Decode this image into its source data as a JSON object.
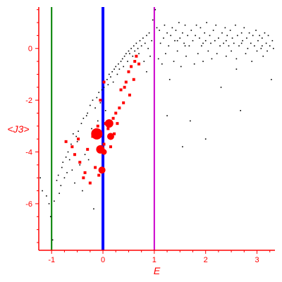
{
  "chart_data": {
    "type": "scatter",
    "title": "",
    "xlabel": "E",
    "ylabel": "<J3>",
    "xlim": [
      -1.25,
      3.35
    ],
    "ylim": [
      -7.8,
      1.6
    ],
    "x_ticks": [
      -1,
      0,
      1,
      2,
      3
    ],
    "y_ticks": [
      -6,
      -4,
      -2,
      0
    ],
    "grid": false,
    "colors": {
      "axes": "#ff0000",
      "background_points": "#000000",
      "highlight_points": "#ff0000",
      "line_green": "#008000",
      "line_blue": "#0000ff",
      "line_magenta": "#cc00cc"
    },
    "vertical_lines": [
      {
        "x": -1.0,
        "color": "#008000",
        "width": 2
      },
      {
        "x": 0.0,
        "color": "#0000ff",
        "width": 4
      },
      {
        "x": 1.0,
        "color": "#cc00cc",
        "width": 2
      }
    ],
    "series": [
      {
        "color": "#000000",
        "marker": "dot",
        "points": [
          [
            -1.22,
            -5.0
          ],
          [
            -1.18,
            -5.5
          ],
          [
            -1.1,
            -5.7
          ],
          [
            -1.05,
            -6.0
          ],
          [
            -1.02,
            -6.5
          ],
          [
            -0.98,
            -7.4
          ],
          [
            -0.95,
            -5.9
          ],
          [
            -0.9,
            -5.1
          ],
          [
            -0.87,
            -4.9
          ],
          [
            -0.85,
            -5.6
          ],
          [
            -0.82,
            -5.3
          ],
          [
            -0.8,
            -4.6
          ],
          [
            -0.78,
            -4.4
          ],
          [
            -0.75,
            -5.0
          ],
          [
            -0.72,
            -4.2
          ],
          [
            -0.7,
            -4.8
          ],
          [
            -0.68,
            -4.0
          ],
          [
            -0.65,
            -4.3
          ],
          [
            -0.62,
            -3.7
          ],
          [
            -0.6,
            -4.7
          ],
          [
            -0.58,
            -3.3
          ],
          [
            -0.55,
            -5.2
          ],
          [
            -0.52,
            -3.4
          ],
          [
            -0.5,
            -3.6
          ],
          [
            -0.48,
            -3.2
          ],
          [
            -0.45,
            -4.5
          ],
          [
            -0.42,
            -2.9
          ],
          [
            -0.4,
            -5.5
          ],
          [
            -0.38,
            -2.7
          ],
          [
            -0.35,
            -4.1
          ],
          [
            -0.32,
            -2.6
          ],
          [
            -0.3,
            -2.5
          ],
          [
            -0.28,
            -4.3
          ],
          [
            -0.25,
            -2.2
          ],
          [
            -0.22,
            -3.1
          ],
          [
            -0.2,
            -2.0
          ],
          [
            -0.18,
            -6.2
          ],
          [
            -0.15,
            -2.3
          ],
          [
            -0.12,
            -1.9
          ],
          [
            -0.1,
            -2.8
          ],
          [
            -0.08,
            -1.7
          ],
          [
            -0.05,
            -2.1
          ],
          [
            -0.02,
            -1.6
          ],
          [
            0.02,
            -1.5
          ],
          [
            0.05,
            -2.4
          ],
          [
            0.08,
            -1.2
          ],
          [
            0.1,
            -1.4
          ],
          [
            0.12,
            -1.0
          ],
          [
            0.15,
            -1.1
          ],
          [
            0.18,
            -0.9
          ],
          [
            0.2,
            -1.3
          ],
          [
            0.22,
            -0.8
          ],
          [
            0.25,
            -0.7
          ],
          [
            0.28,
            -1.0
          ],
          [
            0.3,
            -0.6
          ],
          [
            0.32,
            -0.8
          ],
          [
            0.35,
            -0.5
          ],
          [
            0.38,
            -0.4
          ],
          [
            0.4,
            -0.7
          ],
          [
            0.42,
            -0.3
          ],
          [
            0.45,
            -0.2
          ],
          [
            0.48,
            -0.5
          ],
          [
            0.5,
            -0.1
          ],
          [
            0.52,
            -0.2
          ],
          [
            0.55,
            0.0
          ],
          [
            0.58,
            -0.3
          ],
          [
            0.6,
            0.1
          ],
          [
            0.62,
            -0.1
          ],
          [
            0.65,
            0.2
          ],
          [
            0.68,
            0.0
          ],
          [
            0.7,
            -0.2
          ],
          [
            0.72,
            0.3
          ],
          [
            0.75,
            0.1
          ],
          [
            0.78,
            0.4
          ],
          [
            0.8,
            -0.5
          ],
          [
            0.82,
            0.2
          ],
          [
            0.85,
            0.5
          ],
          [
            0.88,
            0.0
          ],
          [
            0.9,
            0.6
          ],
          [
            0.92,
            -0.3
          ],
          [
            0.95,
            0.3
          ],
          [
            0.97,
            1.1
          ],
          [
            1.02,
            1.5
          ],
          [
            1.05,
            0.8
          ],
          [
            1.08,
            -0.4
          ],
          [
            1.1,
            0.7
          ],
          [
            1.12,
            0.2
          ],
          [
            1.15,
            -0.6
          ],
          [
            1.18,
            0.4
          ],
          [
            1.2,
            0.9
          ],
          [
            1.22,
            -0.2
          ],
          [
            1.25,
            0.6
          ],
          [
            1.28,
            0.1
          ],
          [
            1.3,
            -1.2
          ],
          [
            1.32,
            0.5
          ],
          [
            1.35,
            0.8
          ],
          [
            1.38,
            -0.5
          ],
          [
            1.4,
            0.3
          ],
          [
            1.42,
            0.7
          ],
          [
            1.45,
            -0.1
          ],
          [
            1.48,
            1.0
          ],
          [
            1.5,
            0.4
          ],
          [
            1.52,
            -0.7
          ],
          [
            1.55,
            0.6
          ],
          [
            1.58,
            0.2
          ],
          [
            1.6,
            0.9
          ],
          [
            1.62,
            -0.3
          ],
          [
            1.65,
            0.5
          ],
          [
            1.68,
            0.1
          ],
          [
            1.7,
            -2.8
          ],
          [
            1.72,
            0.7
          ],
          [
            1.75,
            0.3
          ],
          [
            1.78,
            -0.6
          ],
          [
            1.8,
            0.5
          ],
          [
            1.82,
            0.9
          ],
          [
            1.85,
            -0.2
          ],
          [
            1.88,
            0.4
          ],
          [
            1.9,
            0.8
          ],
          [
            1.92,
            0.1
          ],
          [
            1.95,
            -0.5
          ],
          [
            1.98,
            0.6
          ],
          [
            2.0,
            0.3
          ],
          [
            2.02,
            1.0
          ],
          [
            2.05,
            -0.1
          ],
          [
            2.08,
            0.5
          ],
          [
            2.1,
            0.2
          ],
          [
            2.12,
            -0.4
          ],
          [
            2.15,
            0.7
          ],
          [
            2.18,
            0.3
          ],
          [
            2.2,
            0.9
          ],
          [
            2.22,
            -0.2
          ],
          [
            2.25,
            0.4
          ],
          [
            2.28,
            0.1
          ],
          [
            2.3,
            -1.5
          ],
          [
            2.32,
            0.6
          ],
          [
            2.35,
            0.2
          ],
          [
            2.38,
            0.8
          ],
          [
            2.4,
            -0.3
          ],
          [
            2.42,
            0.5
          ],
          [
            2.45,
            0.1
          ],
          [
            2.48,
            0.7
          ],
          [
            2.5,
            -0.1
          ],
          [
            2.52,
            0.4
          ],
          [
            2.55,
            0.2
          ],
          [
            2.58,
            0.9
          ],
          [
            2.6,
            -0.4
          ],
          [
            2.62,
            0.5
          ],
          [
            2.65,
            0.1
          ],
          [
            2.68,
            -2.4
          ],
          [
            2.7,
            0.6
          ],
          [
            2.72,
            0.3
          ],
          [
            2.75,
            0.8
          ],
          [
            2.78,
            -0.2
          ],
          [
            2.8,
            0.4
          ],
          [
            2.82,
            0.0
          ],
          [
            2.85,
            0.6
          ],
          [
            2.88,
            0.2
          ],
          [
            2.9,
            -0.5
          ],
          [
            2.92,
            0.5
          ],
          [
            2.95,
            0.1
          ],
          [
            2.98,
            0.7
          ],
          [
            3.0,
            -0.1
          ],
          [
            3.02,
            0.3
          ],
          [
            3.05,
            0.5
          ],
          [
            3.08,
            0.0
          ],
          [
            3.1,
            0.4
          ],
          [
            3.12,
            -0.3
          ],
          [
            3.15,
            0.6
          ],
          [
            3.18,
            0.2
          ],
          [
            3.2,
            -0.1
          ],
          [
            3.22,
            0.5
          ],
          [
            3.25,
            0.1
          ],
          [
            3.28,
            -1.2
          ],
          [
            3.3,
            0.3
          ],
          [
            3.32,
            0.0
          ],
          [
            1.55,
            -3.8
          ],
          [
            2.0,
            -3.5
          ],
          [
            1.25,
            -2.6
          ],
          [
            2.6,
            -0.8
          ],
          [
            0.85,
            -0.9
          ],
          [
            1.6,
            0.1
          ],
          [
            2.7,
            0.2
          ],
          [
            3.1,
            0.1
          ],
          [
            2.4,
            0.3
          ],
          [
            1.95,
            0.2
          ],
          [
            1.45,
            0.3
          ]
        ]
      },
      {
        "color": "#ff0000",
        "marker": "square",
        "points": [
          [
            -0.72,
            -3.6
          ],
          [
            -0.6,
            -3.8
          ],
          [
            -0.55,
            -4.1
          ],
          [
            -0.48,
            -3.5
          ],
          [
            -0.45,
            -4.4
          ],
          [
            -0.38,
            -5.0
          ],
          [
            -0.35,
            -4.8
          ],
          [
            -0.3,
            -3.9
          ],
          [
            -0.25,
            -5.2
          ],
          [
            -0.2,
            -3.4
          ],
          [
            -0.15,
            -4.6
          ],
          [
            -0.1,
            -3.0
          ],
          [
            -0.08,
            -4.9
          ],
          [
            0.02,
            -3.7
          ],
          [
            0.05,
            -2.9
          ],
          [
            0.1,
            -3.1
          ],
          [
            0.15,
            -3.8
          ],
          [
            0.2,
            -2.7
          ],
          [
            0.22,
            -3.3
          ],
          [
            0.25,
            -2.5
          ],
          [
            0.28,
            -2.9
          ],
          [
            0.32,
            -2.3
          ],
          [
            0.35,
            -1.6
          ],
          [
            0.4,
            -2.1
          ],
          [
            0.42,
            -1.5
          ],
          [
            0.45,
            -1.3
          ],
          [
            0.5,
            -0.9
          ],
          [
            0.52,
            -1.8
          ],
          [
            0.55,
            -0.7
          ],
          [
            0.6,
            -1.2
          ],
          [
            0.62,
            -0.5
          ],
          [
            0.65,
            -0.3
          ],
          [
            0.7,
            -0.6
          ],
          [
            0.02,
            -1.3
          ],
          [
            -0.05,
            -2.0
          ]
        ]
      },
      {
        "color": "#ff0000",
        "marker": "circle",
        "points": [
          [
            -0.12,
            -3.3,
            8
          ],
          [
            0.12,
            -2.9,
            6
          ],
          [
            0.15,
            -3.4,
            5
          ],
          [
            -0.05,
            -3.9,
            6
          ],
          [
            -0.02,
            -4.7,
            5
          ],
          [
            0.02,
            -4.0,
            4
          ]
        ]
      }
    ]
  }
}
